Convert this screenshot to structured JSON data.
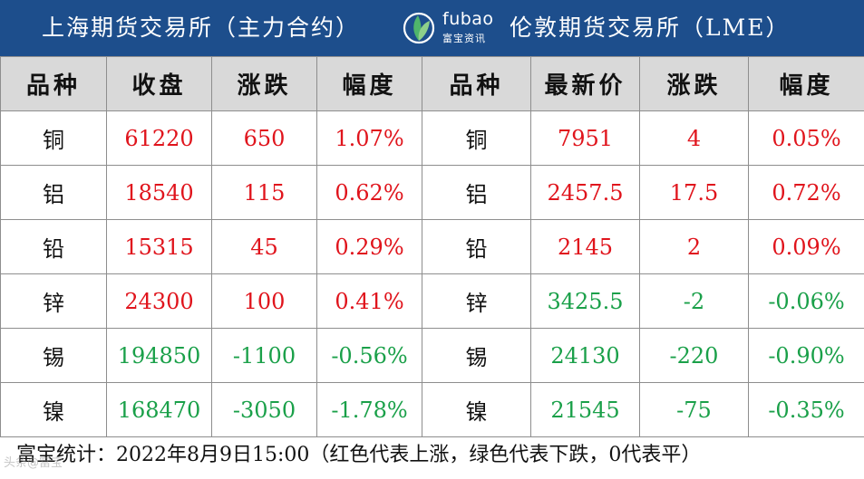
{
  "header": {
    "left_title": "上海期货交易所（主力合约）",
    "right_title": "伦敦期货交易所（LME）",
    "logo_brand": "fubao",
    "logo_sub": "富宝资讯"
  },
  "columns": [
    "品种",
    "收盘",
    "涨跌",
    "幅度",
    "品种",
    "最新价",
    "涨跌",
    "幅度"
  ],
  "rows": [
    {
      "sh": {
        "name": "铜",
        "close": "61220",
        "change": "650",
        "pct": "1.07%"
      },
      "lme": {
        "name": "铜",
        "price": "7951",
        "change": "4",
        "pct": "0.05%"
      }
    },
    {
      "sh": {
        "name": "铝",
        "close": "18540",
        "change": "115",
        "pct": "0.62%"
      },
      "lme": {
        "name": "铝",
        "price": "2457.5",
        "change": "17.5",
        "pct": "0.72%"
      }
    },
    {
      "sh": {
        "name": "铅",
        "close": "15315",
        "change": "45",
        "pct": "0.29%"
      },
      "lme": {
        "name": "铅",
        "price": "2145",
        "change": "2",
        "pct": "0.09%"
      }
    },
    {
      "sh": {
        "name": "锌",
        "close": "24300",
        "change": "100",
        "pct": "0.41%"
      },
      "lme": {
        "name": "锌",
        "price": "3425.5",
        "change": "-2",
        "pct": "-0.06%"
      }
    },
    {
      "sh": {
        "name": "锡",
        "close": "194850",
        "change": "-1100",
        "pct": "-0.56%"
      },
      "lme": {
        "name": "锡",
        "price": "24130",
        "change": "-220",
        "pct": "-0.90%"
      }
    },
    {
      "sh": {
        "name": "镍",
        "close": "168470",
        "change": "-3050",
        "pct": "-1.78%"
      },
      "lme": {
        "name": "镍",
        "price": "21545",
        "change": "-75",
        "pct": "-0.35%"
      }
    }
  ],
  "colors": {
    "up": "#e0141c",
    "down": "#1aa049",
    "header_bg": "#1d4e8c",
    "column_header_bg": "#d9d9d9"
  },
  "footer": {
    "text": "富宝统计：2022年8月9日15:00（红色代表上涨，绿色代表下跌，0代表平）",
    "watermark": "头条@富宝"
  }
}
